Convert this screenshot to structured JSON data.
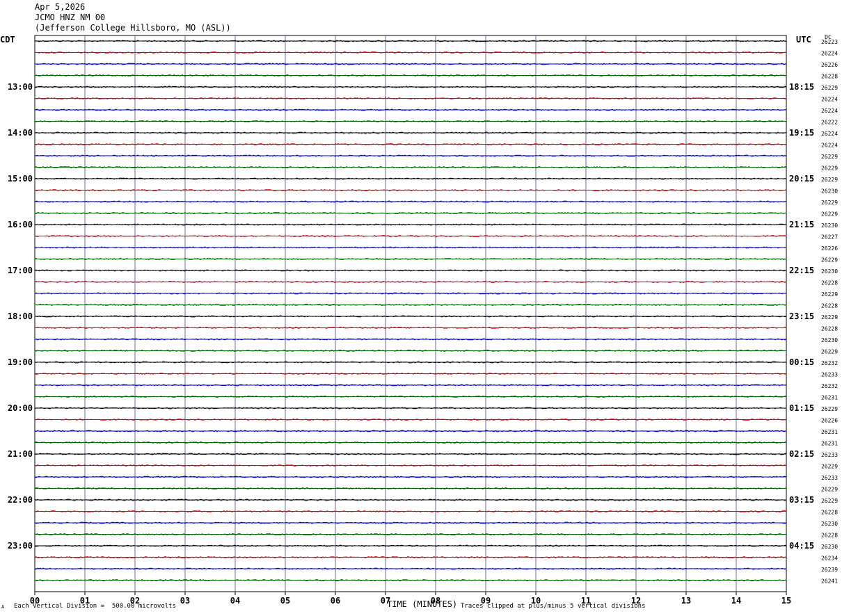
{
  "header": {
    "date": "Apr 5,2026",
    "station": "JCMO HNZ NM 00",
    "location": "(Jefferson College Hillsboro, MO (ASL))"
  },
  "left_tz": "CDT",
  "right_tz": "UTC",
  "dc_label": "DC",
  "footer": {
    "scale": "Each Vertical Division =  500.00 microvolts",
    "xlabel": "TIME (MINUTES)",
    "clip_note": "Traces clipped at plus/minus 5 vertical divisions",
    "corner_mark": "A"
  },
  "colors": {
    "black": "#000000",
    "red": "#e00000",
    "blue": "#0000cc",
    "green": "#006400",
    "grid": "#6a6aa0"
  },
  "chart_data": {
    "type": "line",
    "title": "JCMO HNZ NM 00",
    "xlabel": "TIME (MINUTES)",
    "x_ticks": [
      "00",
      "01",
      "02",
      "03",
      "04",
      "05",
      "06",
      "07",
      "08",
      "09",
      "10",
      "11",
      "12",
      "13",
      "14",
      "15"
    ],
    "xlim": [
      0,
      15
    ],
    "grid": true,
    "left_hours": [
      "13:00",
      "14:00",
      "15:00",
      "16:00",
      "17:00",
      "18:00",
      "19:00",
      "20:00",
      "21:00",
      "22:00",
      "23:00"
    ],
    "right_hours": [
      "18:15",
      "19:15",
      "20:15",
      "21:15",
      "22:15",
      "23:15",
      "00:15",
      "01:15",
      "02:15",
      "03:15",
      "04:15"
    ],
    "trace_colors": [
      "black",
      "red",
      "blue",
      "green"
    ],
    "dc_offsets": [
      26223,
      26224,
      26226,
      26228,
      26229,
      26224,
      26224,
      26222,
      26224,
      26224,
      26229,
      26229,
      26229,
      26230,
      26229,
      26229,
      26230,
      26227,
      26226,
      26229,
      26230,
      26228,
      26229,
      26228,
      26229,
      26228,
      26230,
      26229,
      26232,
      26233,
      26232,
      26231,
      26229,
      26226,
      26231,
      26231,
      26233,
      26229,
      26233,
      26229,
      26229,
      26228,
      26230,
      26228,
      26230,
      26234,
      26239,
      26241
    ]
  }
}
